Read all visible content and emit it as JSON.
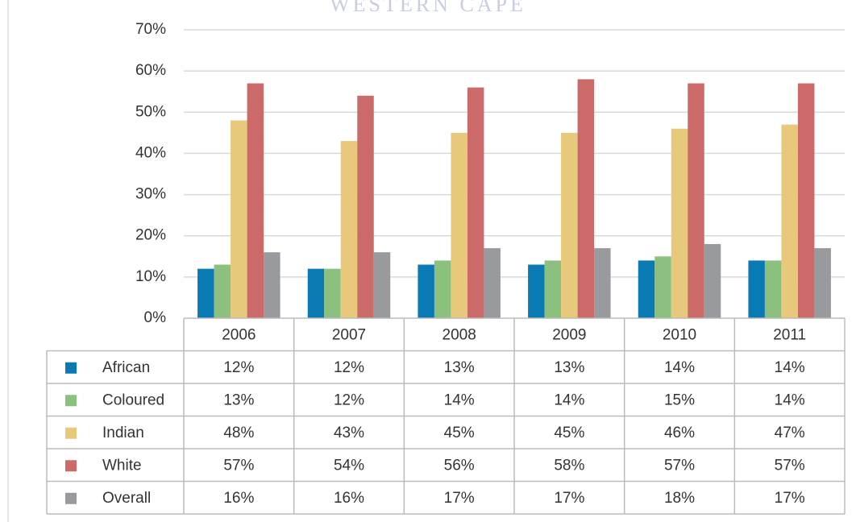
{
  "chart_data": {
    "type": "bar",
    "watermark": "WESTERN CAPE",
    "categories": [
      "2006",
      "2007",
      "2008",
      "2009",
      "2010",
      "2011"
    ],
    "series": [
      {
        "name": "African",
        "color": "#0a7ab5",
        "values": [
          12,
          12,
          13,
          13,
          14,
          14
        ],
        "value_labels": [
          "12%",
          "12%",
          "13%",
          "13%",
          "14%",
          "14%"
        ]
      },
      {
        "name": "Coloured",
        "color": "#8cc07f",
        "values": [
          13,
          12,
          14,
          14,
          15,
          14
        ],
        "value_labels": [
          "13%",
          "12%",
          "14%",
          "14%",
          "15%",
          "14%"
        ]
      },
      {
        "name": "Indian",
        "color": "#e8c87b",
        "values": [
          48,
          43,
          45,
          45,
          46,
          47
        ],
        "value_labels": [
          "48%",
          "43%",
          "45%",
          "45%",
          "46%",
          "47%"
        ]
      },
      {
        "name": "White",
        "color": "#cc6a6a",
        "values": [
          57,
          54,
          56,
          58,
          57,
          57
        ],
        "value_labels": [
          "57%",
          "54%",
          "56%",
          "58%",
          "57%",
          "57%"
        ]
      },
      {
        "name": "Overall",
        "color": "#999a9e",
        "values": [
          16,
          16,
          17,
          17,
          18,
          17
        ],
        "value_labels": [
          "16%",
          "16%",
          "17%",
          "17%",
          "18%",
          "17%"
        ]
      }
    ],
    "ylim": [
      0,
      70
    ],
    "yticks": [
      {
        "value": 0,
        "label": "0%"
      },
      {
        "value": 10,
        "label": "10%"
      },
      {
        "value": 20,
        "label": "20%"
      },
      {
        "value": 30,
        "label": "30%"
      },
      {
        "value": 40,
        "label": "40%"
      },
      {
        "value": 50,
        "label": "50%"
      },
      {
        "value": 60,
        "label": "60%"
      },
      {
        "value": 70,
        "label": "70%"
      }
    ],
    "grid": true
  }
}
